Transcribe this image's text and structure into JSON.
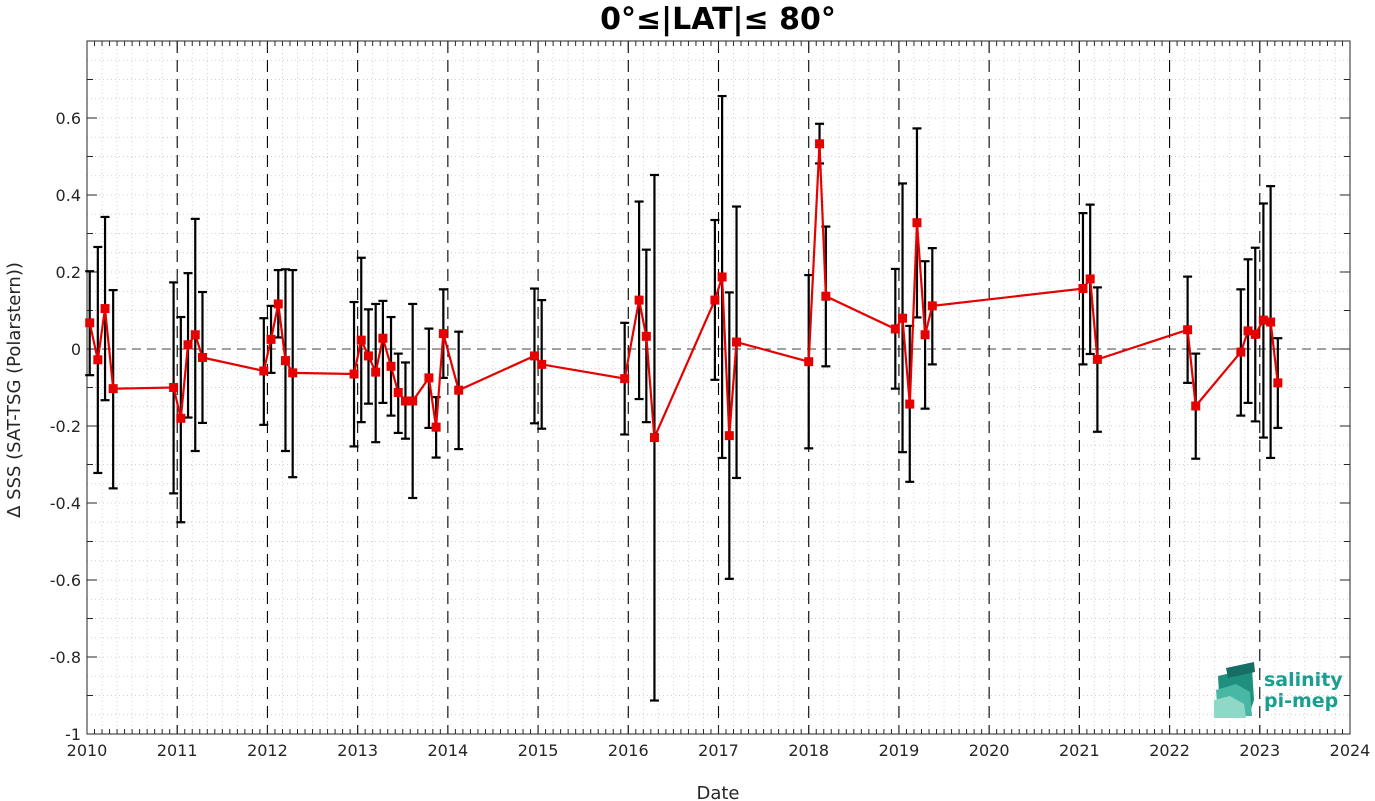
{
  "chart_data": {
    "type": "line",
    "title": "0°≤|LAT|≤ 80°",
    "xlabel": "Date",
    "ylabel": "Δ SSS (SAT-TSG (Polarstern))",
    "xlim": [
      2010,
      2024
    ],
    "ylim": [
      -1,
      0.8
    ],
    "x_ticks": [
      "2010",
      "2011",
      "2012",
      "2013",
      "2014",
      "2015",
      "2016",
      "2017",
      "2018",
      "2019",
      "2020",
      "2021",
      "2022",
      "2023",
      "2024"
    ],
    "y_ticks": [
      "-1",
      "-0.8",
      "-0.6",
      "-0.4",
      "-0.2",
      "0",
      "0.2",
      "0.4",
      "0.6"
    ],
    "grid": "minor dotted, year lines dashed",
    "zero_line": "dashed",
    "line_color": "#e60000",
    "errorbar_color": "#000000",
    "series": [
      {
        "values": [
          {
            "x": 2010.03,
            "y": 0.068,
            "low": -0.068,
            "high": 0.202
          },
          {
            "x": 2010.12,
            "y": -0.028,
            "low": -0.322,
            "high": 0.265
          },
          {
            "x": 2010.2,
            "y": 0.105,
            "low": -0.133,
            "high": 0.343
          },
          {
            "x": 2010.29,
            "y": -0.103,
            "low": -0.362,
            "high": 0.153
          },
          {
            "x": 2010.96,
            "y": -0.1,
            "low": -0.375,
            "high": 0.173
          },
          {
            "x": 2011.04,
            "y": -0.18,
            "low": -0.45,
            "high": 0.083
          },
          {
            "x": 2011.12,
            "y": 0.011,
            "low": -0.178,
            "high": 0.197
          },
          {
            "x": 2011.2,
            "y": 0.037,
            "low": -0.265,
            "high": 0.338
          },
          {
            "x": 2011.28,
            "y": -0.022,
            "low": -0.192,
            "high": 0.148
          },
          {
            "x": 2011.96,
            "y": -0.057,
            "low": -0.197,
            "high": 0.08
          },
          {
            "x": 2012.04,
            "y": 0.025,
            "low": -0.062,
            "high": 0.112
          },
          {
            "x": 2012.12,
            "y": 0.117,
            "low": 0.03,
            "high": 0.205
          },
          {
            "x": 2012.2,
            "y": -0.03,
            "low": -0.265,
            "high": 0.207
          },
          {
            "x": 2012.28,
            "y": -0.062,
            "low": -0.333,
            "high": 0.205
          },
          {
            "x": 2012.96,
            "y": -0.065,
            "low": -0.253,
            "high": 0.122
          },
          {
            "x": 2013.04,
            "y": 0.023,
            "low": -0.19,
            "high": 0.237
          },
          {
            "x": 2013.12,
            "y": -0.018,
            "low": -0.142,
            "high": 0.103
          },
          {
            "x": 2013.2,
            "y": -0.06,
            "low": -0.242,
            "high": 0.117
          },
          {
            "x": 2013.28,
            "y": 0.028,
            "low": -0.14,
            "high": 0.125
          },
          {
            "x": 2013.37,
            "y": -0.045,
            "low": -0.173,
            "high": 0.083
          },
          {
            "x": 2013.45,
            "y": -0.113,
            "low": -0.218,
            "high": -0.012
          },
          {
            "x": 2013.53,
            "y": -0.135,
            "low": -0.233,
            "high": -0.035
          },
          {
            "x": 2013.61,
            "y": -0.135,
            "low": -0.387,
            "high": 0.117
          },
          {
            "x": 2013.79,
            "y": -0.075,
            "low": -0.205,
            "high": 0.053
          },
          {
            "x": 2013.87,
            "y": -0.203,
            "low": -0.282,
            "high": -0.125
          },
          {
            "x": 2013.95,
            "y": 0.04,
            "low": -0.075,
            "high": 0.155
          },
          {
            "x": 2014.12,
            "y": -0.107,
            "low": -0.26,
            "high": 0.045
          },
          {
            "x": 2014.96,
            "y": -0.018,
            "low": -0.193,
            "high": 0.157
          },
          {
            "x": 2015.04,
            "y": -0.04,
            "low": -0.207,
            "high": 0.127
          },
          {
            "x": 2015.96,
            "y": -0.077,
            "low": -0.222,
            "high": 0.068
          },
          {
            "x": 2016.12,
            "y": 0.127,
            "low": -0.13,
            "high": 0.383
          },
          {
            "x": 2016.2,
            "y": 0.033,
            "low": -0.19,
            "high": 0.258
          },
          {
            "x": 2016.29,
            "y": -0.23,
            "low": -0.913,
            "high": 0.452
          },
          {
            "x": 2016.96,
            "y": 0.127,
            "low": -0.08,
            "high": 0.335
          },
          {
            "x": 2017.04,
            "y": 0.187,
            "low": -0.283,
            "high": 0.657
          },
          {
            "x": 2017.12,
            "y": -0.225,
            "low": -0.597,
            "high": 0.147
          },
          {
            "x": 2017.2,
            "y": 0.018,
            "low": -0.335,
            "high": 0.37
          },
          {
            "x": 2018.0,
            "y": -0.033,
            "low": -0.258,
            "high": 0.192
          },
          {
            "x": 2018.12,
            "y": 0.533,
            "low": 0.482,
            "high": 0.585
          },
          {
            "x": 2018.19,
            "y": 0.137,
            "low": -0.045,
            "high": 0.318
          },
          {
            "x": 2018.96,
            "y": 0.052,
            "low": -0.103,
            "high": 0.208
          },
          {
            "x": 2019.04,
            "y": 0.08,
            "low": -0.268,
            "high": 0.43
          },
          {
            "x": 2019.12,
            "y": -0.143,
            "low": -0.345,
            "high": 0.06
          },
          {
            "x": 2019.2,
            "y": 0.328,
            "low": 0.082,
            "high": 0.573
          },
          {
            "x": 2019.29,
            "y": 0.037,
            "low": -0.155,
            "high": 0.228
          },
          {
            "x": 2019.37,
            "y": 0.112,
            "low": -0.04,
            "high": 0.262
          },
          {
            "x": 2021.04,
            "y": 0.157,
            "low": -0.04,
            "high": 0.353
          },
          {
            "x": 2021.12,
            "y": 0.182,
            "low": -0.013,
            "high": 0.375
          },
          {
            "x": 2021.2,
            "y": -0.027,
            "low": -0.215,
            "high": 0.16
          },
          {
            "x": 2022.2,
            "y": 0.05,
            "low": -0.088,
            "high": 0.188
          },
          {
            "x": 2022.29,
            "y": -0.148,
            "low": -0.285,
            "high": -0.012
          },
          {
            "x": 2022.79,
            "y": -0.008,
            "low": -0.173,
            "high": 0.155
          },
          {
            "x": 2022.87,
            "y": 0.047,
            "low": -0.14,
            "high": 0.233
          },
          {
            "x": 2022.95,
            "y": 0.038,
            "low": -0.188,
            "high": 0.263
          },
          {
            "x": 2023.04,
            "y": 0.075,
            "low": -0.23,
            "high": 0.378
          },
          {
            "x": 2023.12,
            "y": 0.07,
            "low": -0.283,
            "high": 0.423
          },
          {
            "x": 2023.2,
            "y": -0.088,
            "low": -0.205,
            "high": 0.028
          }
        ]
      }
    ]
  },
  "logo": {
    "line1": "salinity",
    "line2": "pi-mep",
    "color": "#1a9e8f"
  }
}
